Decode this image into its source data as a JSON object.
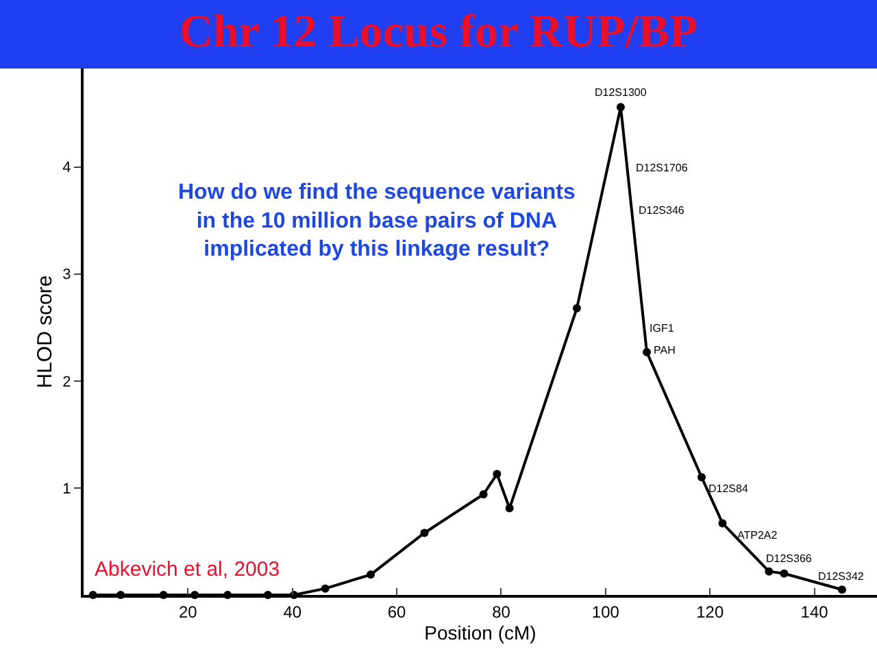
{
  "chart_data": {
    "type": "line",
    "title": "Chr 12 Locus for RUP/BP",
    "xlabel": "Position (cM)",
    "ylabel": "HLOD score",
    "x": [
      1.8,
      7.1,
      15.3,
      21.3,
      27.6,
      35.3,
      40.3,
      46.3,
      55,
      65.3,
      76.6,
      79.2,
      81.6,
      94.5,
      102.9,
      107.9,
      118.4,
      122.4,
      131.3,
      134.2,
      145.3
    ],
    "series": [
      {
        "color": "#000000",
        "values": [
          0,
          0,
          0,
          0,
          0,
          0,
          0,
          0.06,
          0.19,
          0.58,
          0.94,
          1.13,
          0.81,
          2.68,
          4.56,
          2.27,
          1.1,
          0.67,
          0.22,
          0.2,
          0.05
        ]
      }
    ],
    "xlim": [
      0,
      152
    ],
    "xticks": [
      20,
      40,
      60,
      80,
      100,
      120,
      140
    ],
    "ylim": [
      0,
      4.92
    ],
    "yticks": [
      1,
      2,
      3,
      4
    ],
    "marker": "circle",
    "line_style": "solid",
    "annotations": [
      {
        "text": "D12S1300",
        "x": 102.9,
        "y": 4.56
      },
      {
        "text": "D12S1706",
        "x": 104.5,
        "y": 4.1
      },
      {
        "text": "D12S346",
        "x": 105,
        "y": 3.7
      },
      {
        "text": "IGF1",
        "x": 107,
        "y": 2.6
      },
      {
        "text": "PAH",
        "x": 107.9,
        "y": 2.27
      },
      {
        "text": "D12S84",
        "x": 118.4,
        "y": 1.1
      },
      {
        "text": "ATP2A2",
        "x": 122.4,
        "y": 0.67
      },
      {
        "text": "D12S366",
        "x": 131.3,
        "y": 0.22
      },
      {
        "text": "D12S342",
        "x": 145.3,
        "y": 0.05
      },
      "How do we find the sequence variants\nin the 10 million base pairs of DNA\nimplicated by this linkage result?",
      "Abkevich et al, 2003"
    ]
  }
}
